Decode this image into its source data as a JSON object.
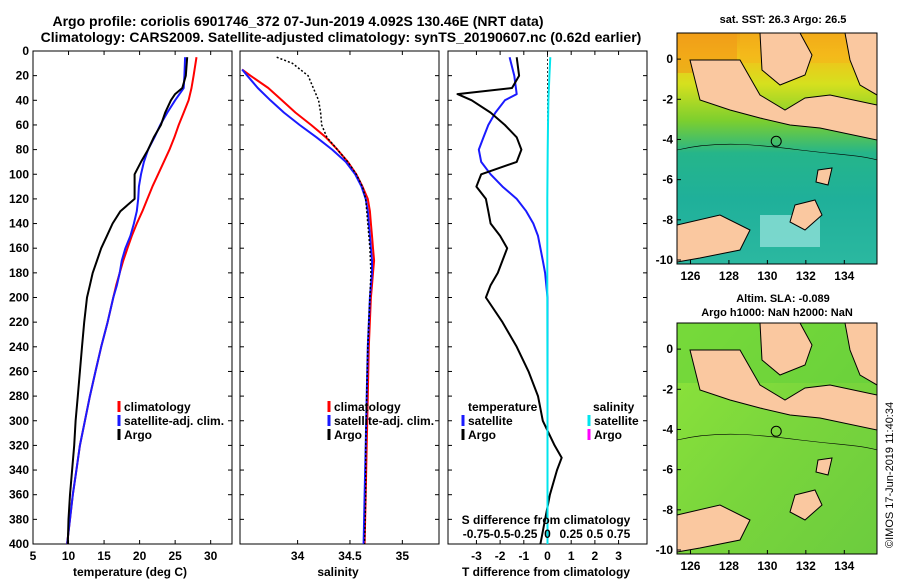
{
  "title": {
    "line1": "Argo profile: coriolis 6901746_372 07-Jun-2019 4.092S 130.46E (NRT data)",
    "line2": "Climatology: CARS2009. Satellite-adjusted climatology: synTS_20190607.nc (0.62d earlier)"
  },
  "depth_axis": {
    "range": [
      0,
      400
    ],
    "ticks": [
      "0",
      "20",
      "40",
      "60",
      "80",
      "100",
      "120",
      "140",
      "160",
      "180",
      "200",
      "220",
      "240",
      "260",
      "280",
      "300",
      "320",
      "340",
      "360",
      "380",
      "400"
    ]
  },
  "colors": {
    "red": "#ff0000",
    "blue": "#1a1aff",
    "black": "#000000",
    "cyan": "#00e5ee",
    "magenta": "#ff00ff"
  },
  "chart_data": [
    {
      "type": "line",
      "title": "",
      "xlabel": "temperature (deg C)",
      "ylabel": "depth",
      "xlim": [
        5,
        33
      ],
      "ylim": [
        400,
        0
      ],
      "xticks": [
        "5",
        "10",
        "15",
        "20",
        "25",
        "30"
      ],
      "xtick_values": [
        5,
        10,
        15,
        20,
        25,
        30
      ],
      "legend": [
        "climatology",
        "satellite-adj. clim.",
        "Argo"
      ],
      "series": [
        {
          "name": "climatology",
          "color": "red",
          "depth": [
            5,
            20,
            30,
            40,
            50,
            60,
            70,
            80,
            90,
            100,
            110,
            120,
            130,
            140,
            150,
            160,
            170,
            180,
            190,
            200,
            220,
            240,
            260,
            280,
            300,
            320,
            340,
            360,
            380,
            400
          ],
          "values": [
            28.0,
            27.6,
            27.3,
            26.9,
            26.2,
            25.5,
            24.9,
            24.2,
            23.4,
            22.6,
            21.8,
            21.1,
            20.4,
            19.6,
            18.9,
            18.3,
            17.7,
            17.2,
            16.7,
            16.3,
            15.5,
            14.6,
            13.8,
            13.0,
            12.3,
            11.6,
            11.1,
            10.6,
            10.2,
            9.8
          ]
        },
        {
          "name": "satellite-adj. clim.",
          "color": "blue",
          "depth": [
            5,
            20,
            30,
            40,
            50,
            60,
            70,
            80,
            90,
            100,
            110,
            120,
            130,
            140,
            150,
            160,
            170,
            180,
            190,
            200,
            220,
            240,
            260,
            280,
            300,
            320,
            340,
            360,
            380,
            400
          ],
          "values": [
            26.4,
            26.3,
            26.2,
            25.0,
            23.9,
            22.9,
            22.1,
            21.2,
            20.6,
            20.2,
            19.9,
            19.8,
            19.6,
            19.2,
            18.7,
            18.0,
            17.5,
            17.2,
            16.8,
            16.3,
            15.5,
            14.6,
            13.8,
            13.0,
            12.3,
            11.6,
            11.1,
            10.6,
            10.2,
            9.8
          ]
        },
        {
          "name": "Argo",
          "color": "black",
          "depth": [
            5,
            20,
            30,
            35,
            40,
            50,
            60,
            70,
            80,
            90,
            100,
            110,
            120,
            130,
            140,
            150,
            160,
            170,
            180,
            190,
            200,
            220,
            240,
            260,
            280,
            300,
            320,
            340,
            360,
            380,
            400
          ],
          "values": [
            26.7,
            26.5,
            26.0,
            25.0,
            24.4,
            23.6,
            23.0,
            22.0,
            21.2,
            20.2,
            19.3,
            19.3,
            19.3,
            17.3,
            16.2,
            15.4,
            14.6,
            14.0,
            13.4,
            13.0,
            12.6,
            12.2,
            11.9,
            11.6,
            11.3,
            11.0,
            10.8,
            10.5,
            10.2,
            10.0,
            9.9
          ]
        }
      ]
    },
    {
      "type": "line",
      "title": "",
      "xlabel": "salinity",
      "ylabel": "depth",
      "xlim": [
        33.45,
        35.35
      ],
      "ylim": [
        400,
        0
      ],
      "xticks": [
        "34",
        "34.5",
        "35"
      ],
      "xtick_values": [
        34,
        34.5,
        35
      ],
      "legend": [
        "climatology",
        "satellite-adj. clim.",
        "Argo"
      ],
      "series": [
        {
          "name": "climatology",
          "color": "red",
          "depth": [
            15,
            20,
            30,
            40,
            50,
            60,
            70,
            80,
            90,
            100,
            110,
            120,
            130,
            140,
            150,
            160,
            170,
            180,
            190,
            200,
            240,
            280,
            320,
            360,
            400
          ],
          "values": [
            33.47,
            33.55,
            33.72,
            33.85,
            33.98,
            34.13,
            34.27,
            34.38,
            34.48,
            34.56,
            34.62,
            34.67,
            34.69,
            34.7,
            34.71,
            34.72,
            34.73,
            34.72,
            34.71,
            34.7,
            34.68,
            34.67,
            34.66,
            34.65,
            34.64
          ]
        },
        {
          "name": "satellite-adj. clim.",
          "color": "blue",
          "depth": [
            15,
            20,
            30,
            40,
            50,
            60,
            70,
            80,
            90,
            100,
            110,
            120,
            130,
            140,
            150,
            160,
            170,
            180,
            190,
            200,
            240,
            280,
            320,
            360,
            400
          ],
          "values": [
            33.47,
            33.52,
            33.62,
            33.74,
            33.87,
            34.02,
            34.18,
            34.33,
            34.46,
            34.55,
            34.61,
            34.65,
            34.67,
            34.68,
            34.69,
            34.7,
            34.71,
            34.71,
            34.7,
            34.69,
            34.67,
            34.66,
            34.65,
            34.64,
            34.63
          ]
        },
        {
          "name": "Argo",
          "color": "black",
          "dashed": true,
          "depth": [
            5,
            10,
            20,
            30,
            40,
            50,
            60,
            70,
            80,
            90,
            100,
            110,
            120,
            140,
            160,
            180,
            200,
            240,
            280,
            320,
            360,
            400
          ],
          "values": [
            33.8,
            33.95,
            34.1,
            34.15,
            34.2,
            34.22,
            34.23,
            34.28,
            34.38,
            34.48,
            34.56,
            34.62,
            34.65,
            34.67,
            34.69,
            34.7,
            34.69,
            34.67,
            34.66,
            34.65,
            34.65,
            34.64
          ]
        }
      ]
    },
    {
      "type": "line",
      "title": "",
      "xlabel": "T difference from climatology",
      "xlabel_top": "S difference from climatology",
      "ylabel": "depth",
      "xlim": [
        -4.2,
        4.2
      ],
      "ylim": [
        400,
        0
      ],
      "xticks": [
        "-3",
        "-2",
        "-1",
        "0",
        "1",
        "2",
        "3"
      ],
      "xtick_values": [
        -3,
        -2,
        -1,
        0,
        1,
        2,
        3
      ],
      "xticks_secondary": [
        "-0.75",
        "-0.5",
        "-0.25",
        "0",
        "0.25",
        "0.5",
        "0.75"
      ],
      "legend_left": {
        "header": "temperature",
        "items": [
          "satellite",
          "Argo"
        ]
      },
      "legend_right": {
        "header": "salinity",
        "items": [
          "satellite",
          "Argo"
        ]
      },
      "series": [
        {
          "name": "T satellite",
          "color": "blue",
          "depth": [
            5,
            20,
            35,
            40,
            50,
            60,
            70,
            80,
            90,
            100,
            110,
            120,
            130,
            140,
            150,
            160,
            170,
            180,
            200,
            240,
            280,
            320,
            360,
            400
          ],
          "values": [
            -1.6,
            -1.4,
            -1.3,
            -1.8,
            -2.2,
            -2.5,
            -2.7,
            -2.9,
            -2.8,
            -2.4,
            -1.9,
            -1.3,
            -0.9,
            -0.6,
            -0.4,
            -0.3,
            -0.2,
            -0.1,
            0.0,
            0.0,
            0.0,
            0.0,
            0.0,
            0.0
          ]
        },
        {
          "name": "T Argo",
          "color": "black",
          "depth": [
            5,
            20,
            30,
            35,
            40,
            50,
            60,
            70,
            80,
            90,
            100,
            110,
            120,
            130,
            140,
            150,
            160,
            170,
            180,
            190,
            200,
            220,
            240,
            260,
            280,
            300,
            320,
            330,
            340,
            360,
            380,
            400
          ],
          "values": [
            -1.3,
            -1.2,
            -1.5,
            -3.8,
            -3.2,
            -2.4,
            -1.8,
            -1.3,
            -1.1,
            -1.3,
            -2.8,
            -3.0,
            -2.6,
            -2.5,
            -2.4,
            -2.0,
            -1.7,
            -1.9,
            -2.1,
            -2.4,
            -2.6,
            -1.9,
            -1.3,
            -0.8,
            -0.4,
            -0.2,
            0.3,
            0.6,
            0.4,
            0.1,
            -0.1,
            -0.3
          ]
        },
        {
          "name": "S satellite",
          "color": "cyan",
          "depth": [
            5,
            20,
            40,
            60,
            80,
            100,
            120,
            160,
            200,
            280,
            400
          ],
          "values": [
            0.12,
            0.08,
            0.04,
            0.02,
            0.01,
            0.0,
            -0.01,
            -0.01,
            -0.01,
            0.0,
            0.0
          ]
        }
      ]
    }
  ],
  "maps": {
    "sst": {
      "title": "sat. SST: 26.3 Argo: 26.5",
      "lon_ticks": [
        "126",
        "128",
        "130",
        "132",
        "134"
      ],
      "lon_values": [
        126,
        128,
        130,
        132,
        134
      ],
      "lat_ticks": [
        "0",
        "-2",
        "-4",
        "-6",
        "-8",
        "-10"
      ],
      "lat_values": [
        0,
        -2,
        -4,
        -6,
        -8,
        -10
      ],
      "lon_range": [
        125.3,
        135.7
      ],
      "lat_range": [
        -10.2,
        1.3
      ],
      "float": {
        "lon": 130.46,
        "lat": -4.092
      }
    },
    "sla": {
      "title1": "Altim. SLA: -0.089",
      "title2": "Argo h1000: NaN h2000: NaN",
      "lon_ticks": [
        "126",
        "128",
        "130",
        "132",
        "134"
      ],
      "lon_values": [
        126,
        128,
        130,
        132,
        134
      ],
      "lat_ticks": [
        "0",
        "-2",
        "-4",
        "-6",
        "-8",
        "-10"
      ],
      "lat_values": [
        0,
        -2,
        -4,
        -6,
        -8,
        -10
      ],
      "lon_range": [
        125.3,
        135.7
      ],
      "lat_range": [
        -10.2,
        1.3
      ],
      "float": {
        "lon": 130.46,
        "lat": -4.092
      }
    }
  },
  "watermark": "©IMOS 17-Jun-2019 11:40:34"
}
